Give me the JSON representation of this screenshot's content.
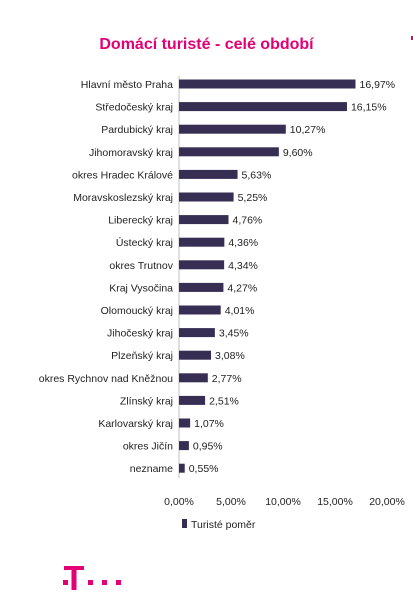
{
  "chart_data": {
    "type": "bar",
    "orientation": "horizontal",
    "title": "Domácí turisté - celé období",
    "categories": [
      "Hlavní město Praha",
      "Středočeský kraj",
      "Pardubický kraj",
      "Jihomoravský kraj",
      "okres Hradec Králové",
      "Moravskoslezský kraj",
      "Liberecký kraj",
      "Ústecký kraj",
      "okres Trutnov",
      "Kraj Vysočina",
      "Olomoucký kraj",
      "Jihočeský kraj",
      "Plzeňský kraj",
      "okres Rychnov nad Kněžnou",
      "Zlínský kraj",
      "Karlovarský kraj",
      "okres Jičín",
      "nezname"
    ],
    "series": [
      {
        "name": "Turisté poměr",
        "values": [
          16.97,
          16.15,
          10.27,
          9.6,
          5.63,
          5.25,
          4.76,
          4.36,
          4.34,
          4.27,
          4.01,
          3.45,
          3.08,
          2.77,
          2.51,
          1.07,
          0.95,
          0.55
        ],
        "labels": [
          "16,97%",
          "16,15%",
          "10,27%",
          "9,60%",
          "5,63%",
          "5,25%",
          "4,76%",
          "4,36%",
          "4,34%",
          "4,27%",
          "4,01%",
          "3,45%",
          "3,08%",
          "2,77%",
          "2,51%",
          "1,07%",
          "0,95%",
          "0,55%"
        ]
      }
    ],
    "xlim": [
      0,
      20
    ],
    "xticks": [
      0,
      5,
      10,
      15,
      20
    ],
    "xtick_labels": [
      "0,00%",
      "5,00%",
      "10,00%",
      "15,00%",
      "20,00%"
    ],
    "xlabel": "",
    "ylabel": "",
    "grid": false,
    "legend_position": "bottom-left",
    "bar_color": "#372e54"
  },
  "brand": {
    "logo_name": "telekom-logo",
    "accent_color": "#e20074"
  }
}
